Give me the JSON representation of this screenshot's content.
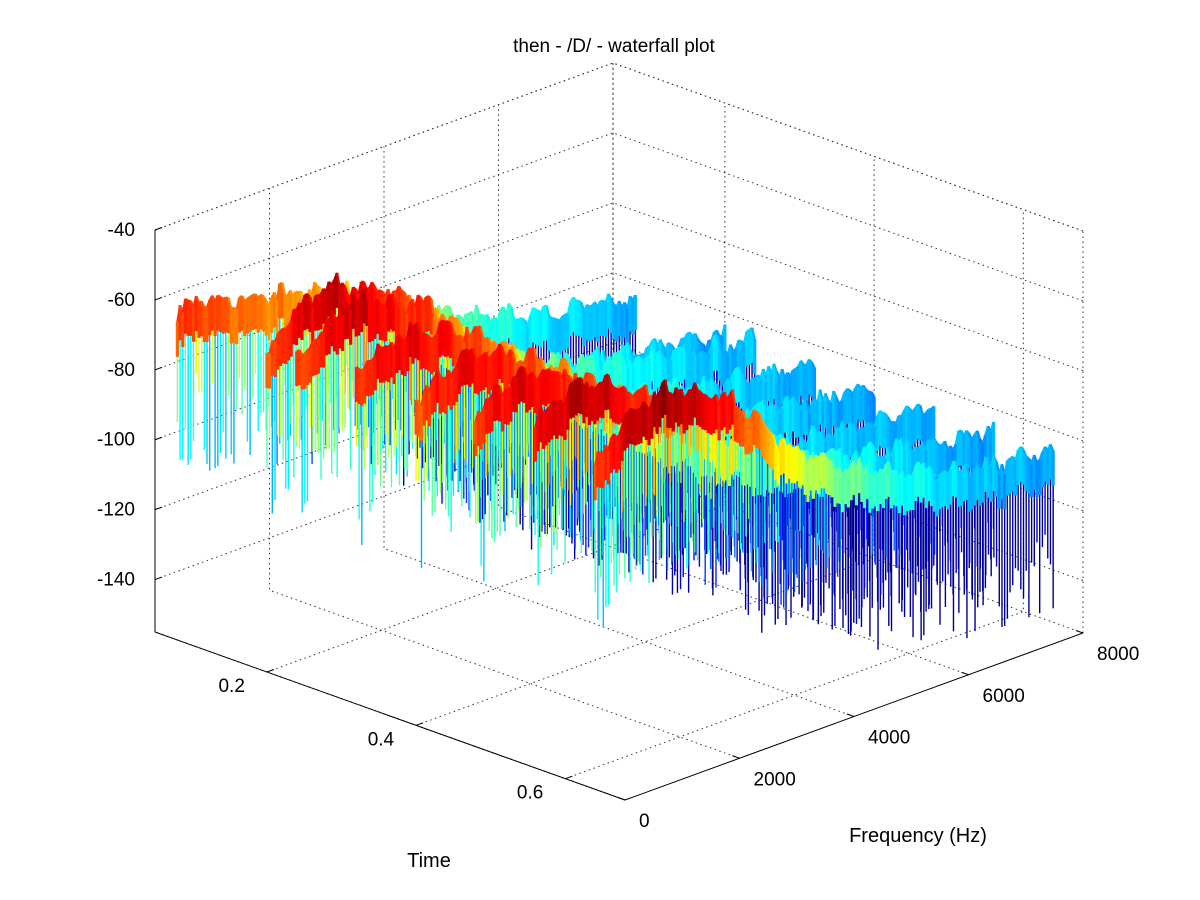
{
  "chart_data": {
    "type": "waterfall",
    "title": "then - /D/ - waterfall plot",
    "xlabel": "Frequency (Hz)",
    "ylabel": "Time",
    "zlabel": "",
    "x_ticks": [
      0,
      2000,
      4000,
      6000,
      8000
    ],
    "y_ticks": [
      0.2,
      0.4,
      0.6
    ],
    "z_ticks": [
      -40,
      -60,
      -80,
      -100,
      -120,
      -140
    ],
    "xlim": [
      0,
      8000
    ],
    "ylim": [
      0.05,
      0.68
    ],
    "zlim": [
      -155,
      -40
    ],
    "grid": true,
    "colormap": "jet",
    "colormap_stops": [
      "#00008f",
      "#0000ff",
      "#00ffff",
      "#ffff00",
      "#ff0000",
      "#800000"
    ],
    "series": [
      {
        "time": 0.08,
        "frequency": [
          0,
          400,
          800,
          1200,
          1600,
          2000,
          2400,
          2800,
          3200,
          4000,
          5000,
          6000,
          7000,
          8000
        ],
        "level": [
          -62,
          -59,
          -63,
          -64,
          -66,
          -68,
          -70,
          -72,
          -75,
          -84,
          -92,
          -98,
          -102,
          -105
        ]
      },
      {
        "time": 0.2,
        "frequency": [
          0,
          400,
          800,
          1200,
          1600,
          2000,
          2400,
          2800,
          3200,
          4000,
          5000,
          6000,
          7000,
          8000
        ],
        "level": [
          -66,
          -55,
          -53,
          -51,
          -55,
          -58,
          -62,
          -68,
          -76,
          -88,
          -96,
          -100,
          -104,
          -106
        ]
      },
      {
        "time": 0.24,
        "frequency": [
          0,
          400,
          800,
          1200,
          1600,
          2000,
          2400,
          2800,
          3200,
          4000,
          5000,
          6000,
          7000,
          8000
        ],
        "level": [
          -62,
          -58,
          -52,
          -52,
          -56,
          -58,
          -62,
          -70,
          -78,
          -86,
          -94,
          -98,
          -102,
          -104
        ]
      },
      {
        "time": 0.32,
        "frequency": [
          0,
          400,
          800,
          1200,
          1600,
          2000,
          2400,
          2800,
          3200,
          4000,
          5000,
          6000,
          7000,
          8000
        ],
        "level": [
          -60,
          -56,
          -54,
          -55,
          -58,
          -60,
          -66,
          -72,
          -80,
          -90,
          -96,
          -100,
          -103,
          -106
        ]
      },
      {
        "time": 0.4,
        "frequency": [
          0,
          400,
          800,
          1200,
          1600,
          2000,
          2400,
          2800,
          3200,
          4000,
          5000,
          6000,
          7000,
          8000
        ],
        "level": [
          -62,
          -58,
          -55,
          -56,
          -58,
          -62,
          -66,
          -72,
          -80,
          -90,
          -96,
          -100,
          -104,
          -106
        ]
      },
      {
        "time": 0.48,
        "frequency": [
          0,
          400,
          800,
          1200,
          1600,
          2000,
          2400,
          2800,
          3200,
          4000,
          5000,
          6000,
          7000,
          8000
        ],
        "level": [
          -60,
          -56,
          -54,
          -55,
          -58,
          -62,
          -68,
          -74,
          -82,
          -92,
          -98,
          -102,
          -104,
          -106
        ]
      },
      {
        "time": 0.56,
        "frequency": [
          0,
          400,
          800,
          1200,
          1600,
          2000,
          2400,
          2800,
          3200,
          4000,
          5000,
          6000,
          7000,
          8000
        ],
        "level": [
          -56,
          -52,
          -50,
          -52,
          -56,
          -60,
          -64,
          -70,
          -80,
          -90,
          -96,
          -100,
          -104,
          -106
        ]
      },
      {
        "time": 0.64,
        "frequency": [
          0,
          400,
          800,
          1200,
          1600,
          2000,
          2400,
          2800,
          3200,
          4000,
          5000,
          6000,
          7000,
          8000
        ],
        "level": [
          -62,
          -54,
          -50,
          -48,
          -50,
          -54,
          -58,
          -64,
          -74,
          -86,
          -94,
          -100,
          -104,
          -106
        ]
      }
    ]
  }
}
